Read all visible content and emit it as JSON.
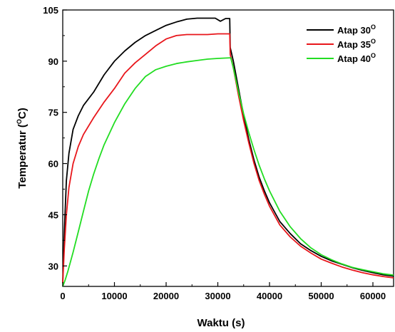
{
  "chart_data": {
    "type": "line",
    "xlabel": "Waktu (s)",
    "ylabel_main": "Temperatur (",
    "ylabel_sup": "O",
    "ylabel_end": "C)",
    "xlim": [
      0,
      64000
    ],
    "ylim": [
      24,
      105
    ],
    "x_ticks": [
      0,
      10000,
      20000,
      30000,
      40000,
      50000,
      60000
    ],
    "x_tick_labels": [
      "0",
      "10000",
      "20000",
      "30000",
      "40000",
      "50000",
      "60000"
    ],
    "y_ticks": [
      30,
      45,
      60,
      75,
      90,
      105
    ],
    "y_tick_labels": [
      "30",
      "45",
      "60",
      "75",
      "90",
      "105"
    ],
    "legend_position": "top-right",
    "series": [
      {
        "name": "Atap 30",
        "name_sup": "O",
        "color": "#000000",
        "points": [
          [
            0,
            25
          ],
          [
            300,
            40
          ],
          [
            700,
            55
          ],
          [
            1200,
            63
          ],
          [
            2000,
            70
          ],
          [
            3000,
            74
          ],
          [
            4000,
            77
          ],
          [
            6000,
            81
          ],
          [
            8000,
            86
          ],
          [
            10000,
            90
          ],
          [
            12000,
            93
          ],
          [
            14000,
            95.5
          ],
          [
            16000,
            97.5
          ],
          [
            18000,
            99
          ],
          [
            20000,
            100.5
          ],
          [
            22000,
            101.5
          ],
          [
            24000,
            102.3
          ],
          [
            26000,
            102.6
          ],
          [
            28000,
            102.6
          ],
          [
            29500,
            102.6
          ],
          [
            30500,
            101.7
          ],
          [
            31500,
            102.5
          ],
          [
            32300,
            102.5
          ],
          [
            32400,
            94
          ],
          [
            33000,
            90
          ],
          [
            34000,
            82
          ],
          [
            35000,
            74
          ],
          [
            36000,
            67
          ],
          [
            37000,
            61
          ],
          [
            38000,
            56
          ],
          [
            39000,
            52
          ],
          [
            40000,
            48.5
          ],
          [
            42000,
            43
          ],
          [
            44000,
            39.5
          ],
          [
            46000,
            36.5
          ],
          [
            48000,
            34.5
          ],
          [
            50000,
            32.8
          ],
          [
            52000,
            31.5
          ],
          [
            54000,
            30.5
          ],
          [
            56000,
            29.5
          ],
          [
            58000,
            28.7
          ],
          [
            60000,
            28
          ],
          [
            62000,
            27.4
          ],
          [
            64000,
            27
          ]
        ]
      },
      {
        "name": "Atap 35",
        "name_sup": "O",
        "color": "#e8161b",
        "points": [
          [
            0,
            25
          ],
          [
            300,
            35
          ],
          [
            700,
            45
          ],
          [
            1200,
            53
          ],
          [
            2000,
            60
          ],
          [
            3000,
            65
          ],
          [
            4000,
            68.5
          ],
          [
            6000,
            73.5
          ],
          [
            8000,
            78
          ],
          [
            10000,
            82
          ],
          [
            12000,
            86.5
          ],
          [
            14000,
            89.5
          ],
          [
            16000,
            92
          ],
          [
            18000,
            94.5
          ],
          [
            20000,
            96.5
          ],
          [
            22000,
            97.5
          ],
          [
            24000,
            97.8
          ],
          [
            26000,
            97.8
          ],
          [
            28000,
            97.8
          ],
          [
            30000,
            98
          ],
          [
            32300,
            98
          ],
          [
            32400,
            92
          ],
          [
            33000,
            88
          ],
          [
            34000,
            80
          ],
          [
            35000,
            72.5
          ],
          [
            36000,
            66
          ],
          [
            37000,
            60
          ],
          [
            38000,
            55
          ],
          [
            39000,
            51
          ],
          [
            40000,
            47.5
          ],
          [
            42000,
            42
          ],
          [
            44000,
            38.5
          ],
          [
            46000,
            35.8
          ],
          [
            48000,
            33.8
          ],
          [
            50000,
            32
          ],
          [
            52000,
            30.8
          ],
          [
            54000,
            29.7
          ],
          [
            56000,
            28.8
          ],
          [
            58000,
            28
          ],
          [
            60000,
            27.4
          ],
          [
            62000,
            26.9
          ],
          [
            64000,
            26.5
          ]
        ]
      },
      {
        "name": "Atap 40",
        "name_sup": "O",
        "color": "#22dd22",
        "points": [
          [
            0,
            24
          ],
          [
            500,
            26
          ],
          [
            1000,
            28.5
          ],
          [
            2000,
            34
          ],
          [
            3000,
            40
          ],
          [
            4000,
            46
          ],
          [
            5000,
            52
          ],
          [
            6000,
            57
          ],
          [
            7000,
            61.5
          ],
          [
            8000,
            65.5
          ],
          [
            10000,
            72
          ],
          [
            12000,
            77.5
          ],
          [
            14000,
            82
          ],
          [
            16000,
            85.5
          ],
          [
            18000,
            87.5
          ],
          [
            20000,
            88.5
          ],
          [
            22000,
            89.3
          ],
          [
            24000,
            89.8
          ],
          [
            26000,
            90.2
          ],
          [
            28000,
            90.6
          ],
          [
            30000,
            90.8
          ],
          [
            32500,
            91
          ],
          [
            33000,
            88
          ],
          [
            34000,
            81
          ],
          [
            35000,
            74.5
          ],
          [
            36000,
            69
          ],
          [
            37000,
            64
          ],
          [
            38000,
            59.5
          ],
          [
            39000,
            55.5
          ],
          [
            40000,
            52
          ],
          [
            42000,
            46
          ],
          [
            44000,
            41.5
          ],
          [
            46000,
            38
          ],
          [
            48000,
            35.3
          ],
          [
            50000,
            33.3
          ],
          [
            52000,
            31.8
          ],
          [
            54000,
            30.6
          ],
          [
            56000,
            29.6
          ],
          [
            58000,
            28.9
          ],
          [
            60000,
            28.3
          ],
          [
            62000,
            27.7
          ],
          [
            64000,
            27.3
          ]
        ]
      }
    ]
  }
}
